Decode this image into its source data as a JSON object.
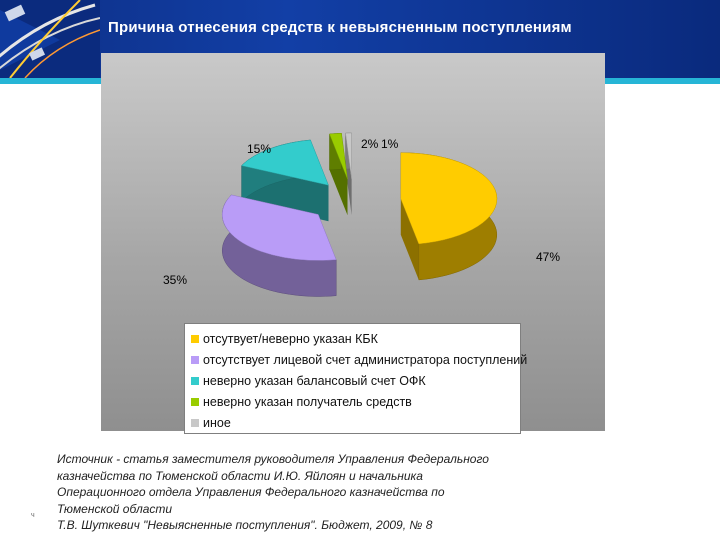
{
  "slide": {
    "title": "Причина отнесения средств к невыясненным поступлениям",
    "footnote_mark": "ч"
  },
  "colors": {
    "header_bg": "#123fa6",
    "accent_strip": "#26b5d6",
    "chart_bg": "#a6a6a6"
  },
  "chart_data": {
    "type": "pie",
    "style": "3d-exploded",
    "legend_position": "bottom",
    "categories": [
      "отсутвует/неверно указан КБК",
      "отсутствует лицевой счет администратора поступлений",
      "неверно указан балансовый счет ОФК",
      "неверно указан получатель средств",
      "иное"
    ],
    "values": [
      47,
      35,
      15,
      2,
      1
    ],
    "labels": [
      "47%",
      "35%",
      "15%",
      "2%",
      "1%"
    ],
    "colors": [
      "#ffcc00",
      "#b99cf7",
      "#33cccc",
      "#99cc00",
      "#c8c8c8"
    ]
  },
  "source": {
    "lines": [
      "Источник - статья заместителя руководителя Управления Федерального",
      "казначейства по Тюменской области И.Ю. Яйлоян и начальника",
      "Операционного отдела Управления Федерального казначейства по",
      "Тюменской области",
      "Т.В. Шуткевич \"Невыясненные поступления\". Бюджет, 2009, № 8"
    ]
  }
}
